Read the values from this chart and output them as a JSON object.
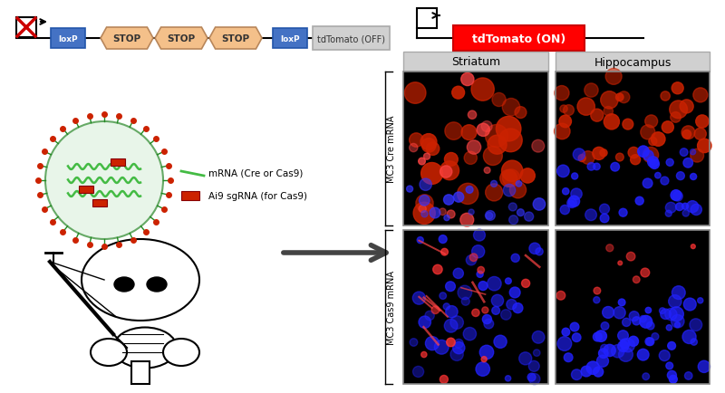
{
  "bg_color": "#ffffff",
  "loxp_color": "#4472c4",
  "stop_color": "#f4c08a",
  "tdtomato_off_color": "#d0d0d0",
  "tdtomato_on_color": "#ff0000",
  "header_color": "#d0d0d0",
  "arrow_color": "#404040",
  "loxp_label": "loxP",
  "stop_label": "STOP",
  "tdtomato_off_label": "tdTomato (OFF)",
  "tdtomato_on_label": "tdTomato (ON)",
  "mrna_legend": "mRNA (Cre or Cas9)",
  "sgrna_legend": "Ai9 sgRNA (for Cas9)",
  "striatum_label": "Striatum",
  "hippocampus_label": "Hippocampus",
  "row1_label": "MC3 Cre mRNA",
  "row2_label": "MC3 Cas9 mRNA",
  "promoter_line_color": "#000000",
  "x_mark_color": "#cc0000"
}
